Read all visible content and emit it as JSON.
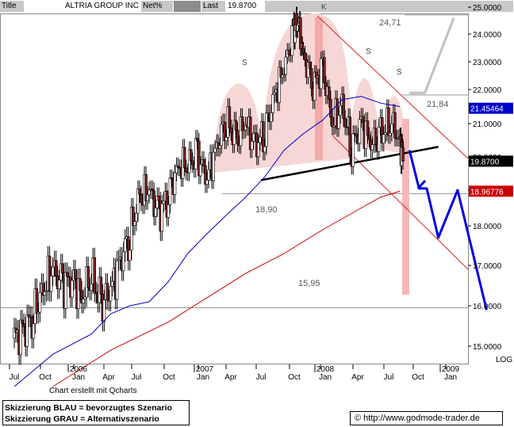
{
  "header": {
    "title_label": "Title",
    "title_value": "ALTRIA GROUP INC",
    "mode_label": "Net%",
    "last_label": "Last",
    "last_value": "19.8700"
  },
  "chart_data": {
    "type": "candlestick",
    "title": "ALTRIA GROUP INC",
    "y_axis": {
      "range": [
        14.5,
        25.0
      ],
      "ticks": [
        "25.0000",
        "24.0000",
        "23.0000",
        "22.0000",
        "21.0000",
        "20.0000",
        "19.0000",
        "18.0000",
        "17.0000",
        "16.0000",
        "15.0000"
      ],
      "scale": "log",
      "scale_label": "LOG"
    },
    "x_axis": {
      "month_labels": [
        "Jul",
        "Oct",
        "Jan",
        "Apr",
        "Jul",
        "Oct",
        "Jan",
        "Apr",
        "Jul",
        "Oct",
        "Jan",
        "Apr",
        "Jul",
        "Oct",
        "Jan"
      ],
      "year_labels": [
        "2006",
        "2007",
        "2008",
        "2009"
      ]
    },
    "price_tags": [
      {
        "label": "21.45464",
        "value": 21.45,
        "color": "#0000cc"
      },
      {
        "label": "19.8700",
        "value": 19.87,
        "color": "#000000"
      },
      {
        "label": "18.96776",
        "value": 18.97,
        "color": "#cc0000"
      }
    ],
    "pattern_labels": [
      "S",
      "K",
      "S",
      "S"
    ],
    "level_annotations": [
      "24,71",
      "21,84",
      "18,90",
      "15,95"
    ],
    "levels": [
      24.71,
      21.84,
      18.9,
      15.95
    ],
    "moving_averages": [
      {
        "name": "short",
        "color": "#0000cc",
        "points": [
          [
            0,
            14.0
          ],
          [
            2,
            14.8
          ],
          [
            4,
            15.3
          ],
          [
            5,
            15.8
          ],
          [
            6,
            16.0
          ],
          [
            7,
            16.1
          ],
          [
            8,
            16.6
          ],
          [
            9,
            17.3
          ],
          [
            10,
            17.8
          ],
          [
            11,
            18.3
          ],
          [
            12,
            18.8
          ],
          [
            13,
            19.4
          ],
          [
            14,
            20.2
          ],
          [
            15,
            20.7
          ],
          [
            16,
            21.1
          ],
          [
            17,
            21.7
          ],
          [
            18,
            21.8
          ],
          [
            19,
            21.6
          ],
          [
            20,
            21.5
          ]
        ]
      },
      {
        "name": "long",
        "color": "#cc0000",
        "points": [
          [
            2,
            14.0
          ],
          [
            5,
            14.9
          ],
          [
            8,
            15.6
          ],
          [
            10,
            16.2
          ],
          [
            12,
            16.8
          ],
          [
            14,
            17.3
          ],
          [
            16,
            17.9
          ],
          [
            18,
            18.5
          ],
          [
            19,
            18.8
          ],
          [
            20,
            18.97
          ]
        ]
      }
    ],
    "price_path": [
      [
        0,
        15.2
      ],
      [
        0.5,
        15.4
      ],
      [
        1,
        15.8
      ],
      [
        1.5,
        16.4
      ],
      [
        2,
        16.9
      ],
      [
        2.5,
        16.5
      ],
      [
        3,
        16.7
      ],
      [
        3.5,
        16.2
      ],
      [
        4,
        16.8
      ],
      [
        4.5,
        16.0
      ],
      [
        5,
        16.4
      ],
      [
        5.5,
        17.1
      ],
      [
        6,
        17.8
      ],
      [
        6.5,
        18.8
      ],
      [
        7,
        19.0
      ],
      [
        7.5,
        18.3
      ],
      [
        8,
        18.9
      ],
      [
        8.5,
        19.7
      ],
      [
        9,
        19.8
      ],
      [
        9.5,
        20.0
      ],
      [
        10,
        19.4
      ],
      [
        10.5,
        20.3
      ],
      [
        11,
        21.1
      ],
      [
        11.5,
        20.5
      ],
      [
        12,
        21.0
      ],
      [
        12.5,
        20.3
      ],
      [
        13,
        20.8
      ],
      [
        13.5,
        21.8
      ],
      [
        14,
        22.8
      ],
      [
        14.5,
        24.0
      ],
      [
        14.7,
        24.6
      ],
      [
        15,
        23.2
      ],
      [
        15.5,
        22.2
      ],
      [
        16,
        22.7
      ],
      [
        16.5,
        21.0
      ],
      [
        17,
        21.5
      ],
      [
        17.5,
        20.3
      ],
      [
        18,
        21.0
      ],
      [
        18.5,
        20.4
      ],
      [
        19,
        20.6
      ],
      [
        19.5,
        21.1
      ],
      [
        20,
        20.5
      ],
      [
        20.2,
        19.87
      ]
    ],
    "black_neckline": [
      [
        12.8,
        19.3
      ],
      [
        22,
        20.3
      ]
    ],
    "scenario_blue": [
      [
        20.5,
        20.2
      ],
      [
        21.0,
        19.05
      ],
      [
        21.4,
        19.05
      ],
      [
        22.0,
        17.7
      ],
      [
        23.0,
        19.0
      ],
      [
        24.5,
        15.9
      ]
    ],
    "scenario_gray": [
      [
        20.5,
        21.9
      ],
      [
        21.3,
        21.9
      ],
      [
        22.8,
        24.6
      ]
    ]
  },
  "legend": {
    "line1": "Skizzierung BLAU = bevorzugtes Szenario",
    "line2": "Skizzierung GRAU = Alternativszenario"
  },
  "footer": {
    "source": "Chart erstellt mit Qcharts",
    "copyright_symbol": "©",
    "url": "http://www.godmode-trader.de"
  }
}
